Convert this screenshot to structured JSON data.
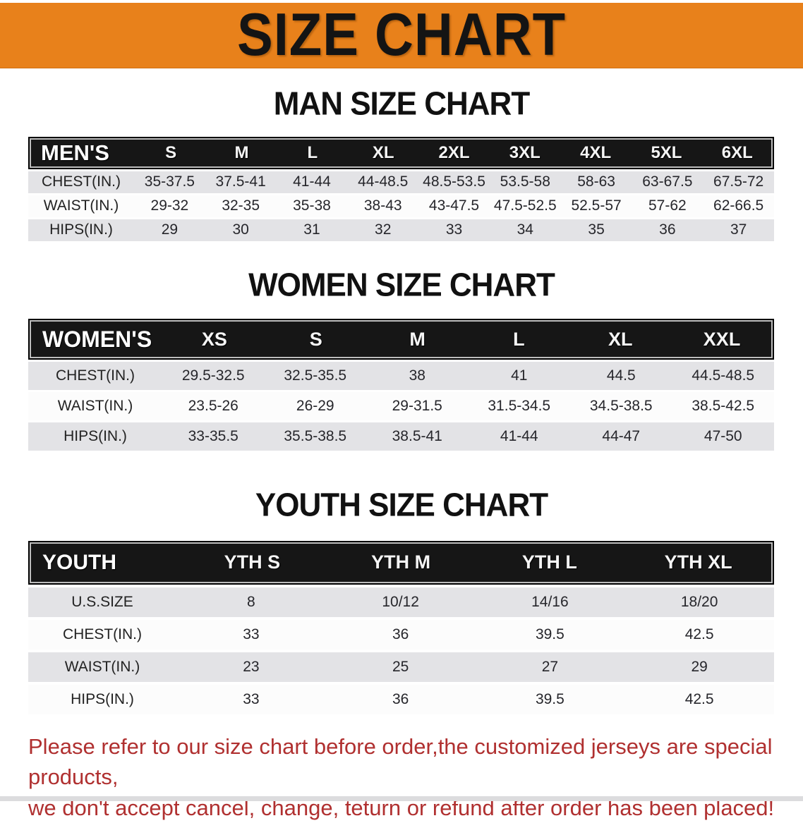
{
  "banner": {
    "title": "SIZE CHART",
    "bg_color": "#E8811B",
    "text_color": "#141414"
  },
  "sections": [
    {
      "title": "MAN SIZE CHART",
      "header_label": "MEN'S",
      "columns": [
        "S",
        "M",
        "L",
        "XL",
        "2XL",
        "3XL",
        "4XL",
        "5XL",
        "6XL"
      ],
      "rows": [
        {
          "label": "CHEST(IN.)",
          "values": [
            "35-37.5",
            "37.5-41",
            "41-44",
            "44-48.5",
            "48.5-53.5",
            "53.5-58",
            "58-63",
            "63-67.5",
            "67.5-72"
          ]
        },
        {
          "label": "WAIST(IN.)",
          "values": [
            "29-32",
            "32-35",
            "35-38",
            "38-43",
            "43-47.5",
            "47.5-52.5",
            "52.5-57",
            "57-62",
            "62-66.5"
          ]
        },
        {
          "label": "HIPS(IN.)",
          "values": [
            "29",
            "30",
            "31",
            "32",
            "33",
            "34",
            "35",
            "36",
            "37"
          ]
        }
      ]
    },
    {
      "title": "WOMEN SIZE CHART",
      "header_label": "WOMEN'S",
      "columns": [
        "XS",
        "S",
        "M",
        "L",
        "XL",
        "XXL"
      ],
      "rows": [
        {
          "label": "CHEST(IN.)",
          "values": [
            "29.5-32.5",
            "32.5-35.5",
            "38",
            "41",
            "44.5",
            "44.5-48.5"
          ]
        },
        {
          "label": "WAIST(IN.)",
          "values": [
            "23.5-26",
            "26-29",
            "29-31.5",
            "31.5-34.5",
            "34.5-38.5",
            "38.5-42.5"
          ]
        },
        {
          "label": "HIPS(IN.)",
          "values": [
            "33-35.5",
            "35.5-38.5",
            "38.5-41",
            "41-44",
            "44-47",
            "47-50"
          ]
        }
      ]
    },
    {
      "title": "YOUTH SIZE CHART",
      "header_label": "YOUTH",
      "columns": [
        "YTH S",
        "YTH M",
        "YTH L",
        "YTH XL"
      ],
      "rows": [
        {
          "label": "U.S.SIZE",
          "values": [
            "8",
            "10/12",
            "14/16",
            "18/20"
          ]
        },
        {
          "label": "CHEST(IN.)",
          "values": [
            "33",
            "36",
            "39.5",
            "42.5"
          ]
        },
        {
          "label": "WAIST(IN.)",
          "values": [
            "23",
            "25",
            "27",
            "29"
          ]
        },
        {
          "label": "HIPS(IN.)",
          "values": [
            "33",
            "36",
            "39.5",
            "42.5"
          ]
        }
      ]
    }
  ],
  "disclaimer": {
    "line1": "Please refer to our size chart before order,the customized jerseys are special products,",
    "line2": "we don't accept cancel, change, teturn or refund after order has been placed!",
    "color": "#B03030"
  },
  "colors": {
    "banner_orange": "#E8811B",
    "header_black": "#161616",
    "row_gray": "#E3E3E6",
    "row_white": "#FCFCFC",
    "disclaimer_red": "#B03030"
  }
}
